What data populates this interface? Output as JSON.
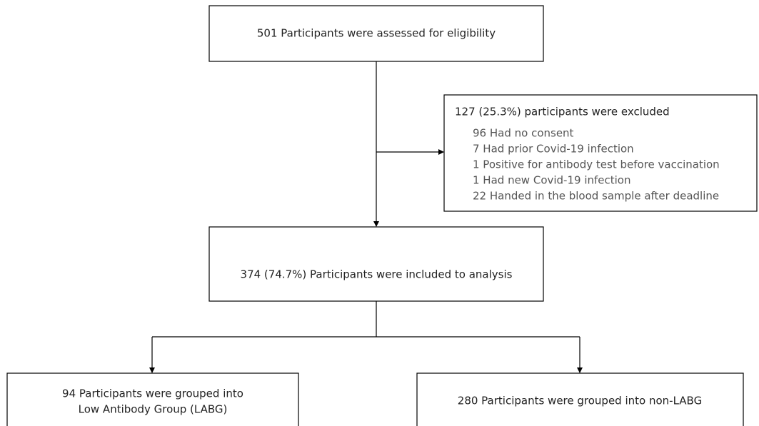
{
  "nodes": [
    {
      "label": "501 Participants were assessed for eligibility"
    },
    {
      "label": "127 (25.3%) participants were excluded",
      "items": [
        "96 Had no consent",
        "7 Had prior Covid-19 infection",
        "1 Positive for antibody test before vaccination",
        "1 Had new Covid-19 infection",
        "22 Handed in the blood sample after deadline"
      ]
    },
    {
      "label": "374 (74.7%) Participants were included to analysis"
    },
    {
      "label": [
        "94 Participants were grouped into",
        "Low Antibody Group (LABG)"
      ]
    },
    {
      "label": "280 Participants were grouped into non-LABG"
    }
  ]
}
